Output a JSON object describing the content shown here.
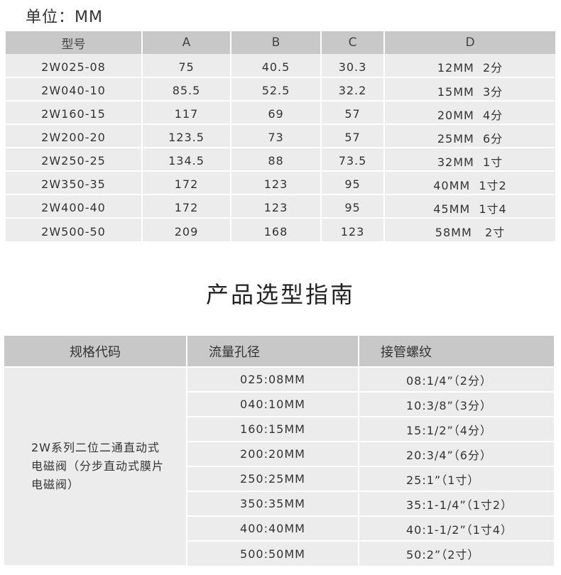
{
  "unit_label": "单位：MM",
  "dims_table": {
    "headers": [
      "型号",
      "A",
      "B",
      "C",
      "D"
    ],
    "rows": [
      [
        "2W025-08",
        "75",
        "40.5",
        "30.3",
        "12MM  2分"
      ],
      [
        "2W040-10",
        "85.5",
        "52.5",
        "32.2",
        "15MM  3分"
      ],
      [
        "2W160-15",
        "117",
        "69",
        "57",
        "20MM  4分"
      ],
      [
        "2W200-20",
        "123.5",
        "73",
        "57",
        "25MM  6分"
      ],
      [
        "2W250-25",
        "134.5",
        "88",
        "73.5",
        "32MM  1寸"
      ],
      [
        "2W350-35",
        "172",
        "123",
        "95",
        "40MM  1寸2"
      ],
      [
        "2W400-40",
        "172",
        "123",
        "95",
        "45MM  1寸4"
      ],
      [
        "2W500-50",
        "209",
        "168",
        "123",
        "58MM   2寸"
      ]
    ]
  },
  "guide_title": "产品选型指南",
  "guide_table": {
    "headers": [
      "规格代码",
      "流量孔径",
      "接管螺纹"
    ],
    "spec": "2W系列二位二通直动式电磁阀（分步直动式膜片电磁阀）",
    "rows": [
      [
        "025:08MM",
        "08:1/4”（2分）"
      ],
      [
        "040:10MM",
        "10:3/8”（3分）"
      ],
      [
        "160:15MM",
        "15:1/2”（4分）"
      ],
      [
        "200:20MM",
        "20:3/4”（6分）"
      ],
      [
        "250:25MM",
        "25:1”（1寸）"
      ],
      [
        "350:35MM",
        "35:1-1/4”（1寸2）"
      ],
      [
        "400:40MM",
        "40:1-1/2”（1寸4）"
      ],
      [
        "500:50MM",
        "50:2”（2寸）"
      ]
    ]
  }
}
